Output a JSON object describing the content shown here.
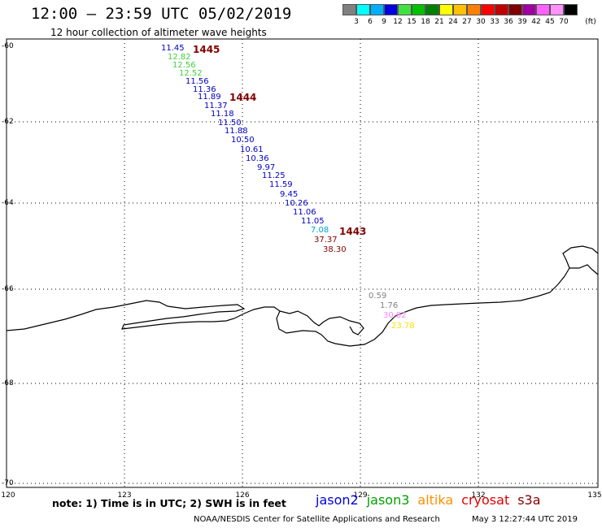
{
  "header": {
    "title": "12:00 – 23:59 UTC 05/02/2019",
    "subtitle": "12 hour collection of altimeter wave heights"
  },
  "legend": {
    "colors": [
      "#808080",
      "#00ffff",
      "#00b0ff",
      "#0000e0",
      "#40e040",
      "#00c000",
      "#008000",
      "#ffff00",
      "#ffc000",
      "#ff8000",
      "#ff0000",
      "#c00000",
      "#800000",
      "#a000a0",
      "#ff60ff",
      "#ff90ff",
      "#000000"
    ],
    "labels": [
      "3",
      "6",
      "9",
      "12",
      "15",
      "18",
      "21",
      "24",
      "27",
      "30",
      "33",
      "36",
      "39",
      "42",
      "45",
      "70"
    ],
    "unit": "(ft)"
  },
  "axes": {
    "lat_labels": [
      "-60",
      "-62",
      "-64",
      "-66",
      "-68",
      "-70"
    ],
    "lon_labels": [
      "120",
      "123",
      "126",
      "129",
      "132",
      "135"
    ]
  },
  "passes": [
    {
      "id": "1445",
      "label": "1445"
    },
    {
      "id": "1444",
      "label": "1444"
    },
    {
      "id": "1443",
      "label": "1443"
    }
  ],
  "observations": [
    {
      "text": "11.45",
      "color": "#0000c0"
    },
    {
      "text": "12.82",
      "color": "#40d040"
    },
    {
      "text": "12.56",
      "color": "#40d040"
    },
    {
      "text": "12.52",
      "color": "#40d040"
    },
    {
      "text": "11.56",
      "color": "#0000c0"
    },
    {
      "text": "11.36",
      "color": "#0000c0"
    },
    {
      "text": "11.89",
      "color": "#0000c0"
    },
    {
      "text": "11.37",
      "color": "#0000c0"
    },
    {
      "text": "11.18",
      "color": "#0000c0"
    },
    {
      "text": "11.50",
      "color": "#0000c0"
    },
    {
      "text": "11.88",
      "color": "#0000c0"
    },
    {
      "text": "10.50",
      "color": "#0000c0"
    },
    {
      "text": "10.61",
      "color": "#0000c0"
    },
    {
      "text": "10.36",
      "color": "#0000c0"
    },
    {
      "text": "9.97",
      "color": "#0000c0"
    },
    {
      "text": "11.25",
      "color": "#0000c0"
    },
    {
      "text": "11.59",
      "color": "#0000c0"
    },
    {
      "text": "9.45",
      "color": "#0000c0"
    },
    {
      "text": "10.26",
      "color": "#0000c0"
    },
    {
      "text": "11.06",
      "color": "#0000c0"
    },
    {
      "text": "11.05",
      "color": "#0000c0"
    },
    {
      "text": "7.08",
      "color": "#00a0e0"
    },
    {
      "text": "37.37",
      "color": "#800000"
    },
    {
      "text": "38.30",
      "color": "#800000"
    },
    {
      "text": "0.59",
      "color": "#808080"
    },
    {
      "text": "1.76",
      "color": "#808080"
    },
    {
      "text": "30.82",
      "color": "#ff80ff"
    },
    {
      "text": "23.78",
      "color": "#ffe000"
    }
  ],
  "footer": {
    "note": "note: 1) Time is in UTC; 2) SWH is in feet",
    "satellites": [
      {
        "name": "jason2",
        "color": "#0000e0"
      },
      {
        "name": "jason3",
        "color": "#00a000"
      },
      {
        "name": "altika",
        "color": "#ff9000"
      },
      {
        "name": "cryosat",
        "color": "#e00000"
      },
      {
        "name": "s3a",
        "color": "#800000"
      }
    ],
    "credit": "NOAA/NESDIS Center for Satellite Applications and Research",
    "timestamp": "May  3 12:27:44 UTC 2019"
  }
}
